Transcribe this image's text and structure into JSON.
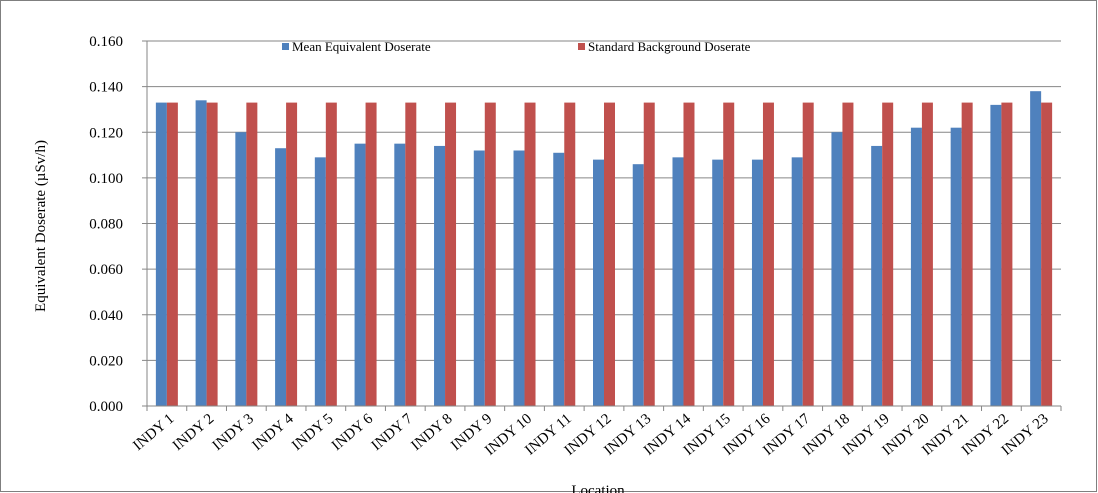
{
  "chart_data": {
    "type": "bar",
    "xlabel": "Location",
    "ylabel": "Equivalent Doserate (µSv/h)",
    "ylim": [
      0,
      0.16
    ],
    "yticks": [
      "0.000",
      "0.020",
      "0.040",
      "0.060",
      "0.080",
      "0.100",
      "0.120",
      "0.140",
      "0.160"
    ],
    "grid": true,
    "legend_position": "top",
    "categories": [
      "INDY 1",
      "INDY 2",
      "INDY 3",
      "INDY 4",
      "INDY 5",
      "INDY 6",
      "INDY 7",
      "INDY 8",
      "INDY 9",
      "INDY 10",
      "INDY 11",
      "INDY 12",
      "INDY 13",
      "INDY 14",
      "INDY 15",
      "INDY 16",
      "INDY 17",
      "INDY 18",
      "INDY 19",
      "INDY 20",
      "INDY 21",
      "INDY 22",
      "INDY 23"
    ],
    "series": [
      {
        "name": "Mean Equivalent Doserate",
        "color": "#4f81bd",
        "values": [
          0.133,
          0.134,
          0.12,
          0.113,
          0.109,
          0.115,
          0.115,
          0.114,
          0.112,
          0.112,
          0.111,
          0.108,
          0.106,
          0.109,
          0.108,
          0.108,
          0.109,
          0.12,
          0.114,
          0.122,
          0.122,
          0.132,
          0.138
        ]
      },
      {
        "name": "Standard Background Doserate",
        "color": "#c0504d",
        "values": [
          0.133,
          0.133,
          0.133,
          0.133,
          0.133,
          0.133,
          0.133,
          0.133,
          0.133,
          0.133,
          0.133,
          0.133,
          0.133,
          0.133,
          0.133,
          0.133,
          0.133,
          0.133,
          0.133,
          0.133,
          0.133,
          0.133,
          0.133
        ]
      }
    ]
  }
}
